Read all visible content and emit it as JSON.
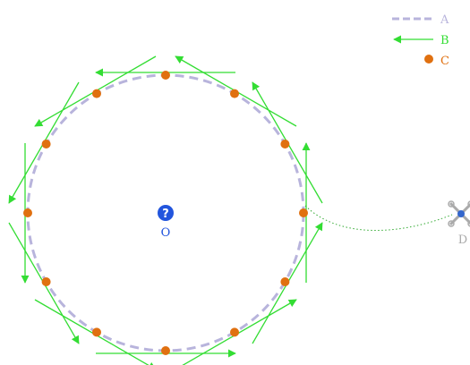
{
  "legend": {
    "A": {
      "label": "A",
      "color": "#b8b4dc",
      "style": "dashed-line"
    },
    "B": {
      "label": "B",
      "color": "#33dd33",
      "style": "arrow"
    },
    "C": {
      "label": "C",
      "color": "#e07010",
      "style": "dot"
    }
  },
  "center": {
    "label": "O",
    "icon": "question-mark-icon",
    "color": "#2255dd"
  },
  "drone": {
    "label": "D",
    "icon": "drone-icon",
    "color": "#aaaaaa"
  },
  "points": {
    "count": 12
  },
  "colors": {
    "circle": "#b8b4dc",
    "arrow": "#33dd33",
    "dot": "#e07010",
    "center": "#2255dd",
    "path": "#33aa33",
    "drone": "#aaaaaa"
  }
}
